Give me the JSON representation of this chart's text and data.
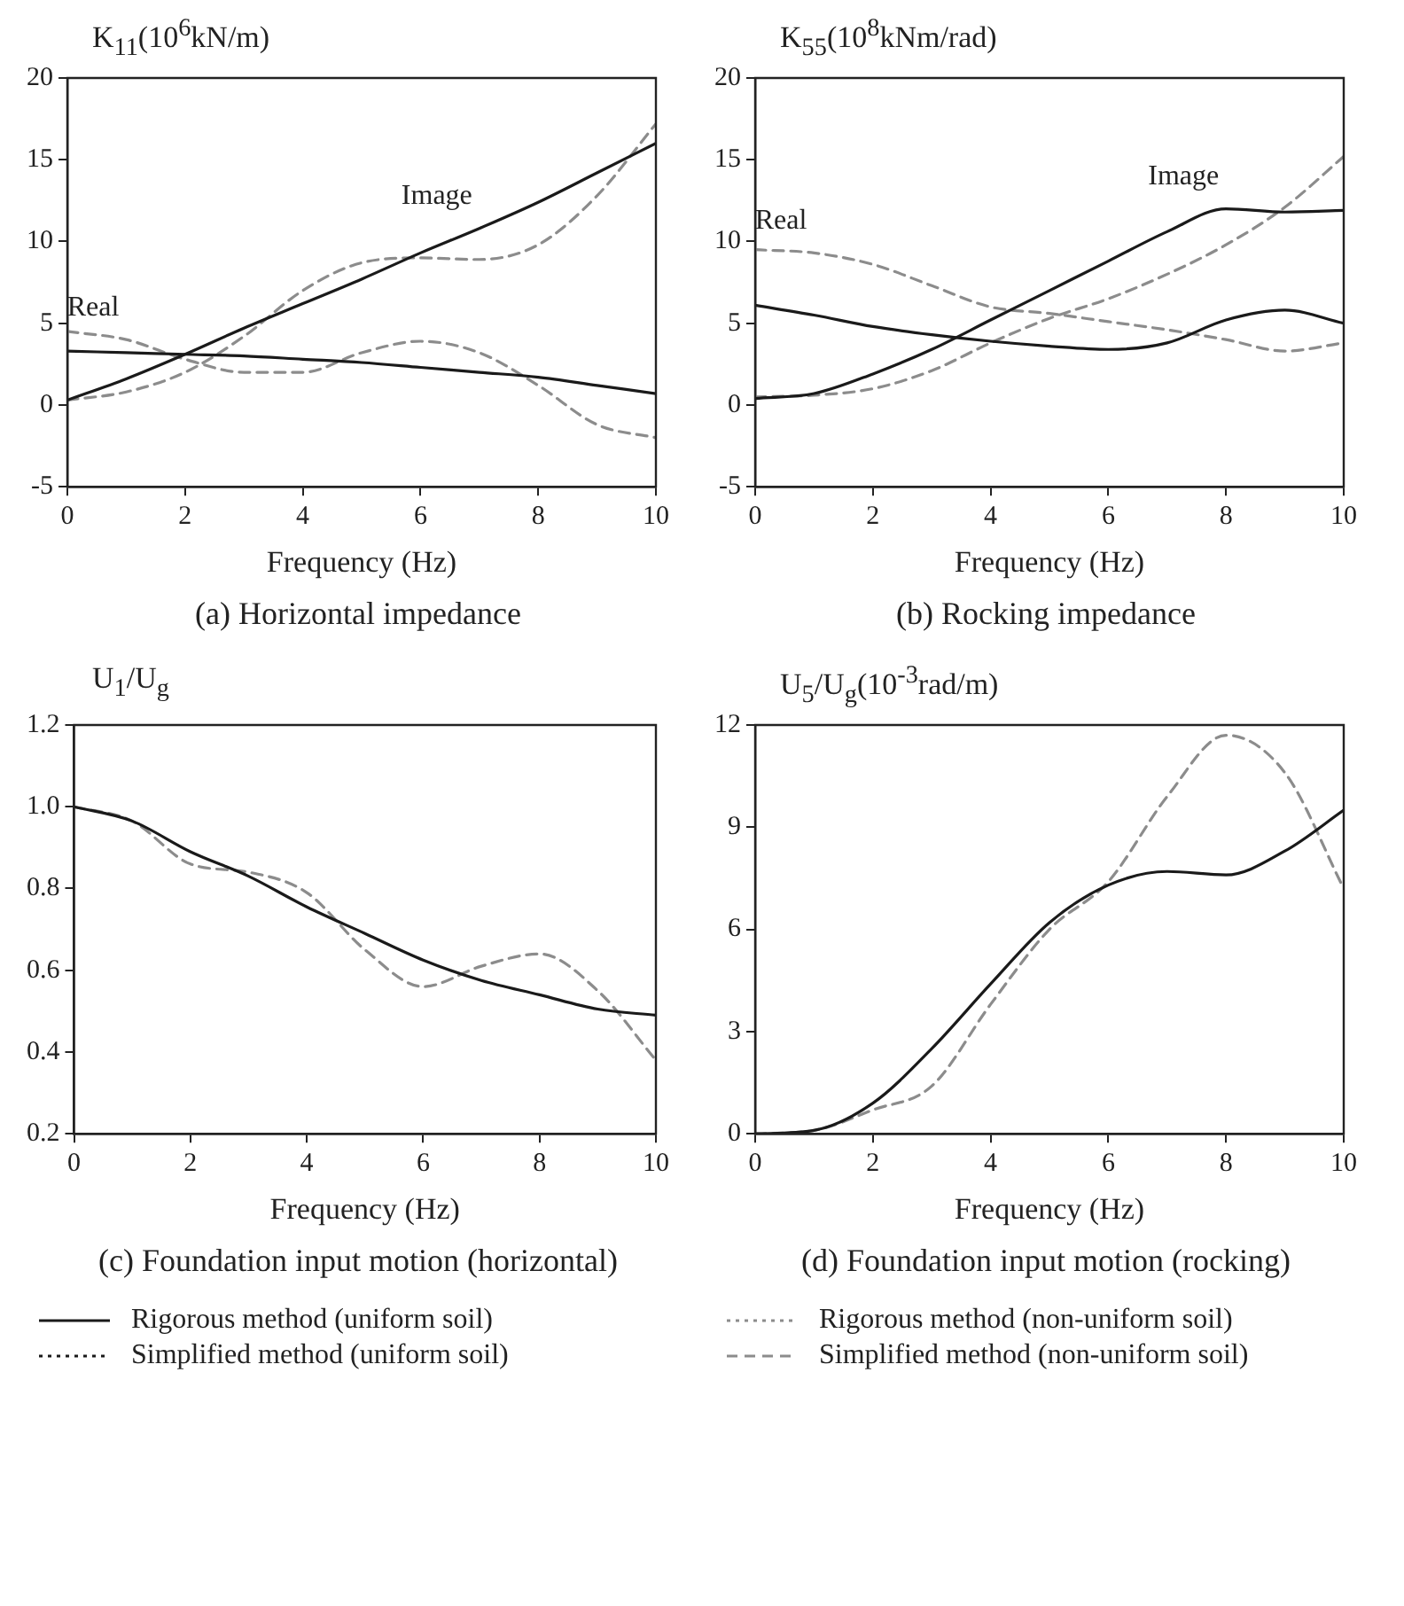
{
  "chart_data": [
    {
      "type": "line",
      "title": "(a) Horizontal impedance",
      "ylabel": "K$_{11}$(10$^{6}$kN/m)",
      "xlabel": "Frequency (Hz)",
      "x": [
        0,
        1,
        2,
        3,
        4,
        5,
        6,
        7,
        8,
        9,
        10
      ],
      "xlim": [
        0,
        10
      ],
      "xticks": [
        0,
        2,
        4,
        6,
        8,
        10
      ],
      "ylim": [
        -5,
        20
      ],
      "yticks": [
        -5,
        0,
        5,
        10,
        15,
        20
      ],
      "grid": false,
      "legend": false,
      "marker": "none",
      "series": [
        {
          "color": "#1a1a1a",
          "line_style": "solid",
          "values": [
            0.3,
            1.6,
            3.1,
            4.7,
            6.2,
            7.7,
            9.3,
            10.8,
            12.4,
            14.2,
            16.0
          ]
        },
        {
          "color": "#1a1a1a",
          "line_style": "solid",
          "values": [
            3.3,
            3.2,
            3.1,
            3.0,
            2.8,
            2.6,
            2.3,
            2.0,
            1.7,
            1.2,
            0.7
          ]
        },
        {
          "color": "#8c8c8c",
          "line_style": "dashed",
          "values": [
            0.3,
            0.8,
            2.0,
            4.2,
            7.0,
            8.7,
            9.0,
            8.9,
            9.8,
            12.8,
            17.2
          ]
        },
        {
          "color": "#8c8c8c",
          "line_style": "dashed",
          "values": [
            4.5,
            4.0,
            2.8,
            2.0,
            2.0,
            3.2,
            3.9,
            3.2,
            1.2,
            -1.2,
            -2.0
          ]
        }
      ],
      "annotations": [
        {
          "text": "Real",
          "x": 1,
          "y": 4.0
        },
        {
          "text": "Image",
          "x": 7,
          "y": 10.8
        }
      ]
    },
    {
      "type": "line",
      "title": "(b) Rocking impedance",
      "ylabel": "K$_{55}$(10$^{8}$kNm/rad)",
      "xlabel": "Frequency (Hz)",
      "x": [
        0,
        1,
        2,
        3,
        4,
        5,
        6,
        7,
        8,
        9,
        10
      ],
      "xlim": [
        0,
        10
      ],
      "xticks": [
        0,
        2,
        4,
        6,
        8,
        10
      ],
      "ylim": [
        -5,
        20
      ],
      "yticks": [
        -5,
        0,
        5,
        10,
        15,
        20
      ],
      "grid": false,
      "legend": false,
      "marker": "none",
      "series": [
        {
          "color": "#1a1a1a",
          "line_style": "solid",
          "values": [
            0.4,
            0.7,
            1.9,
            3.4,
            5.2,
            7.0,
            8.8,
            10.6,
            12.0,
            11.8,
            11.9
          ]
        },
        {
          "color": "#1a1a1a",
          "line_style": "solid",
          "values": [
            6.1,
            5.5,
            4.8,
            4.3,
            3.9,
            3.6,
            3.4,
            3.8,
            5.2,
            5.8,
            5.0
          ]
        },
        {
          "color": "#8c8c8c",
          "line_style": "dashed",
          "values": [
            0.5,
            0.6,
            1.0,
            2.1,
            3.8,
            5.3,
            6.5,
            8.0,
            9.8,
            12.1,
            15.2
          ]
        },
        {
          "color": "#8c8c8c",
          "line_style": "dashed",
          "values": [
            9.5,
            9.3,
            8.6,
            7.3,
            6.0,
            5.6,
            5.1,
            4.6,
            4.0,
            3.3,
            3.8
          ]
        }
      ],
      "annotations": [
        {
          "text": "Real",
          "x": 1,
          "y": 9.3
        },
        {
          "text": "Image",
          "x": 8,
          "y": 12
        }
      ]
    },
    {
      "type": "line",
      "title": "(c) Foundation input motion (horizontal)",
      "ylabel": "U$_{1}$/U$_{g}$",
      "xlabel": "Frequency (Hz)",
      "x": [
        0,
        1,
        2,
        3,
        4,
        5,
        6,
        7,
        8,
        9,
        10
      ],
      "xlim": [
        0,
        10
      ],
      "xticks": [
        0,
        2,
        4,
        6,
        8,
        10
      ],
      "ylim": [
        0.2,
        1.2
      ],
      "yticks": [
        {
          "value": 0.2,
          "label": "0.2"
        },
        {
          "value": 0.4,
          "label": "0.4"
        },
        {
          "value": 0.6,
          "label": "0.6"
        },
        {
          "value": 0.8,
          "label": "0.8"
        },
        {
          "value": 1,
          "label": "1.0"
        },
        {
          "value": 1.2,
          "label": "1.2"
        }
      ],
      "grid": false,
      "legend": false,
      "marker": "none",
      "series": [
        {
          "color": "#1a1a1a",
          "line_style": "solid",
          "values": [
            1.0,
            0.965,
            0.89,
            0.83,
            0.755,
            0.69,
            0.625,
            0.575,
            0.54,
            0.505,
            0.49
          ]
        },
        {
          "color": "#8c8c8c",
          "line_style": "dashed",
          "values": [
            1.0,
            0.965,
            0.86,
            0.84,
            0.79,
            0.65,
            0.56,
            0.61,
            0.64,
            0.55,
            0.38
          ]
        }
      ]
    },
    {
      "type": "line",
      "title": "(d) Foundation input motion (rocking)",
      "ylabel": "U$_{5}$/U$_{g}$(10$^{-3}$rad/m)",
      "xlabel": "Frequency (Hz)",
      "x": [
        0,
        1,
        2,
        3,
        4,
        5,
        6,
        7,
        8,
        9,
        10
      ],
      "xlim": [
        0,
        10
      ],
      "xticks": [
        0,
        2,
        4,
        6,
        8,
        10
      ],
      "ylim": [
        0,
        12
      ],
      "yticks": [
        0,
        3,
        6,
        9,
        12
      ],
      "grid": false,
      "legend": false,
      "marker": "none",
      "series": [
        {
          "color": "#1a1a1a",
          "line_style": "solid",
          "values": [
            0,
            0.1,
            0.9,
            2.5,
            4.4,
            6.2,
            7.3,
            7.7,
            7.6,
            8.3,
            9.5
          ]
        },
        {
          "color": "#8c8c8c",
          "line_style": "dashed",
          "values": [
            0,
            0.1,
            0.7,
            1.4,
            3.8,
            6.0,
            7.4,
            9.9,
            11.7,
            10.6,
            7.2
          ]
        }
      ],
      "annotations": [
        "Rigorous method (uniform soil)",
        "Simplified method (uniform soil)",
        "Rigorous method (non-uniform soil)",
        "Simplified method (non-uniform soil)"
      ]
    }
  ]
}
